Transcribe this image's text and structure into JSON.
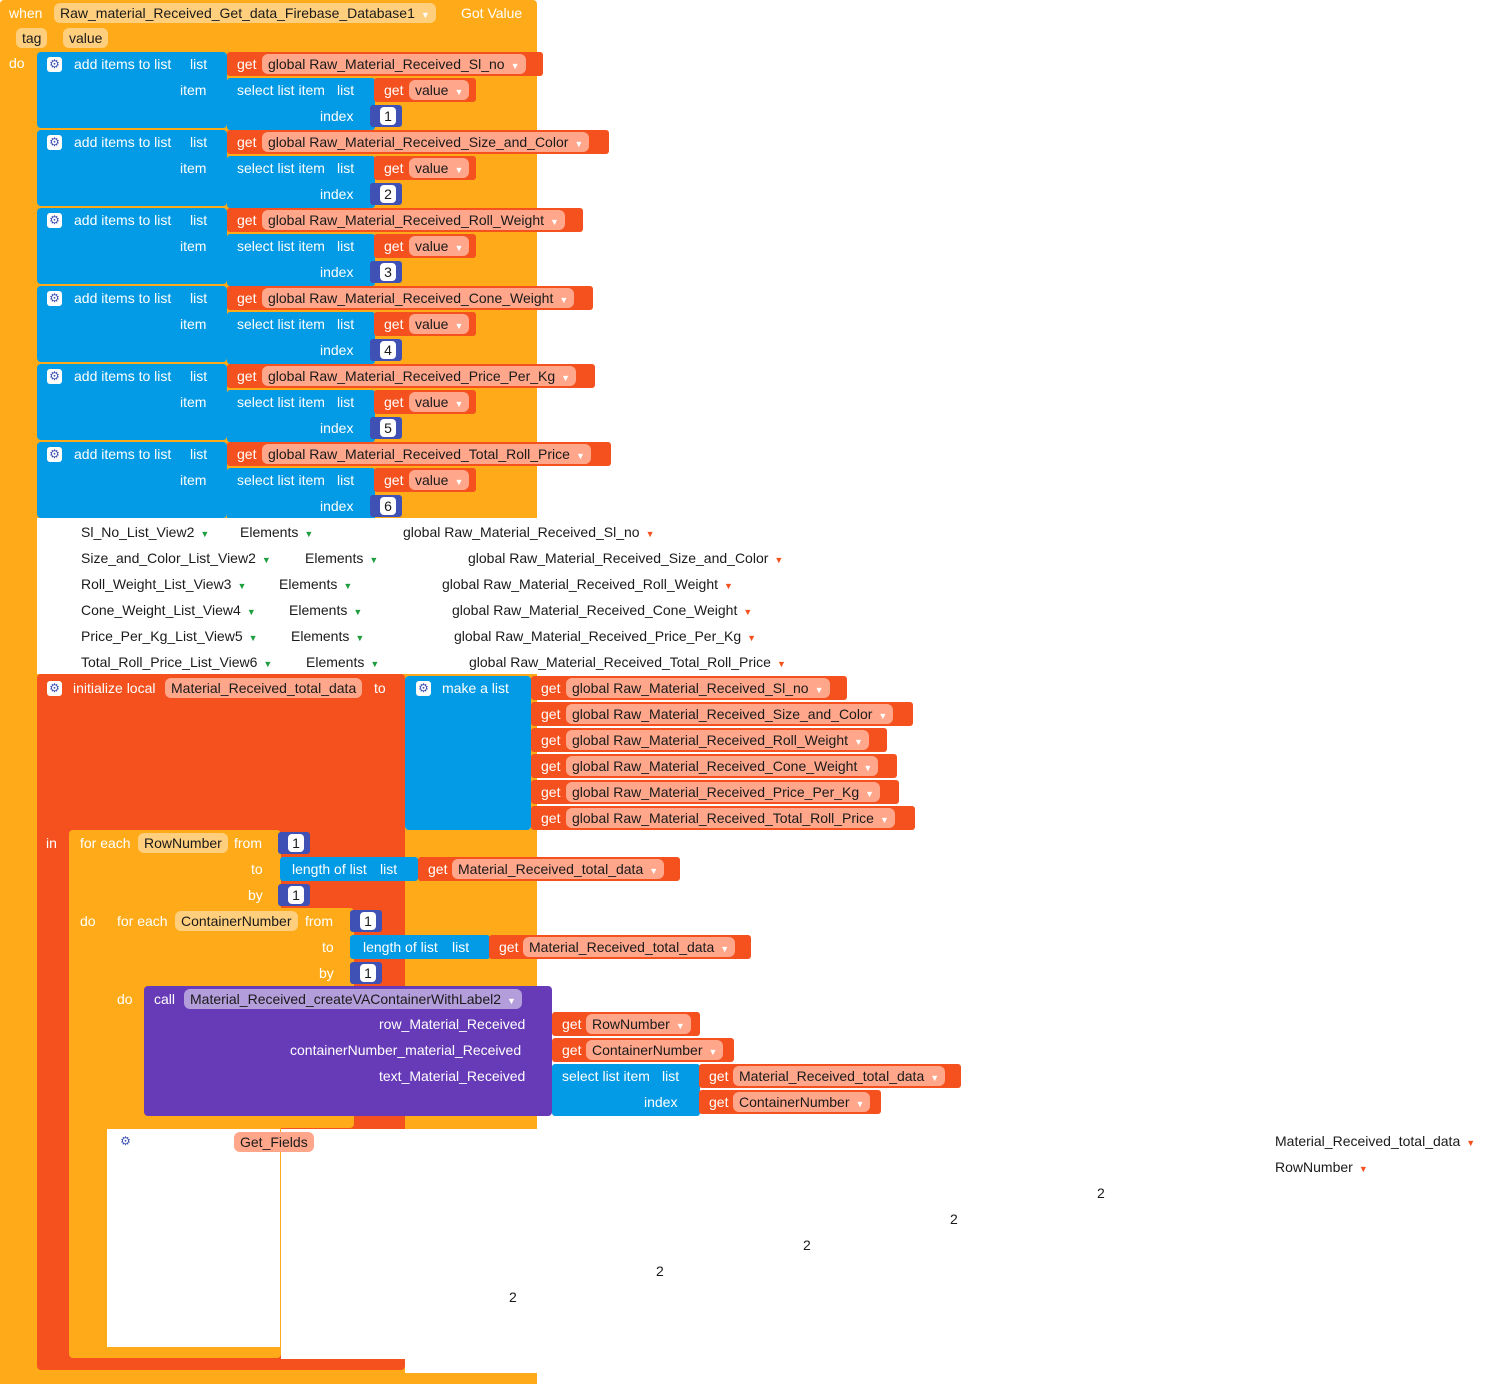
{
  "event": {
    "when": "when",
    "component": "Raw_material_Received_Get_data_Firebase_Database1",
    "event_name": "Got Value",
    "params": [
      "tag",
      "value"
    ],
    "do": "do"
  },
  "add_label": "add items to list",
  "list_kw": "list",
  "item_kw": "item",
  "index_kw": "index",
  "get_kw": "get",
  "select_label": "select list item",
  "value_var": "value",
  "add_items": [
    {
      "var": "global Raw_Material_Received_Sl_no",
      "index": "1"
    },
    {
      "var": "global Raw_Material_Received_Size_and_Color",
      "index": "2"
    },
    {
      "var": "global Raw_Material_Received_Roll_Weight",
      "index": "3"
    },
    {
      "var": "global Raw_Material_Received_Cone_Weight",
      "index": "4"
    },
    {
      "var": "global Raw_Material_Received_Price_Per_Kg",
      "index": "5"
    },
    {
      "var": "global Raw_Material_Received_Total_Roll_Price",
      "index": "6"
    }
  ],
  "setters": [
    {
      "comp": "Sl_No_List_View2",
      "prop": "Elements",
      "var": "global Raw_Material_Received_Sl_no"
    },
    {
      "comp": "Size_and_Color_List_View2",
      "prop": "Elements",
      "var": "global Raw_Material_Received_Size_and_Color"
    },
    {
      "comp": "Roll_Weight_List_View3",
      "prop": "Elements",
      "var": "global Raw_Material_Received_Roll_Weight"
    },
    {
      "comp": "Cone_Weight_List_View4",
      "prop": "Elements",
      "var": "global Raw_Material_Received_Cone_Weight"
    },
    {
      "comp": "Price_Per_Kg_List_View5",
      "prop": "Elements",
      "var": "global Raw_Material_Received_Price_Per_Kg"
    },
    {
      "comp": "Total_Roll_Price_List_View6",
      "prop": "Elements",
      "var": "global Raw_Material_Received_Total_Roll_Price"
    }
  ],
  "init_local": {
    "label": "initialize local",
    "name": "Material_Received_total_data",
    "to": "to",
    "make_list": "make a list",
    "items": [
      "global Raw_Material_Received_Sl_no",
      "global Raw_Material_Received_Size_and_Color",
      "global Raw_Material_Received_Roll_Weight",
      "global Raw_Material_Received_Cone_Weight",
      "global Raw_Material_Received_Price_Per_Kg",
      "global Raw_Material_Received_Total_Roll_Price"
    ],
    "in": "in"
  },
  "loop_outer": {
    "for_each": "for each",
    "var": "RowNumber",
    "from_kw": "from",
    "from_val": "1",
    "to_kw": "to",
    "length_label": "length of list",
    "list_kw": "list",
    "list_var": "Material_Received_total_data",
    "by_kw": "by",
    "by_val": "1",
    "do_kw": "do"
  },
  "loop_inner": {
    "for_each": "for each",
    "var": "ContainerNumber",
    "from_kw": "from",
    "from_val": "1",
    "to_kw": "to",
    "length_label": "length of list",
    "list_kw": "list",
    "list_var": "Material_Received_total_data",
    "by_kw": "by",
    "by_val": "1",
    "do_kw": "do"
  },
  "call": {
    "call_kw": "call",
    "proc": "Material_Received_createVAContainerWithLabel2",
    "arg1": "row_Material_Received",
    "arg1_var": "RowNumber",
    "arg2": "containerNumber_material_Received",
    "arg2_var": "ContainerNumber",
    "arg3": "text_Material_Received",
    "select_label": "select list item",
    "list_kw": "list",
    "index_kw": "index",
    "list_var": "Material_Received_total_data",
    "index_var": "ContainerNumber"
  },
  "stray": {
    "proc": "Get_Fields",
    "var1": "Material_Received_total_data",
    "var2": "RowNumber",
    "nums": [
      "2",
      "2",
      "2",
      "2",
      "2"
    ]
  }
}
